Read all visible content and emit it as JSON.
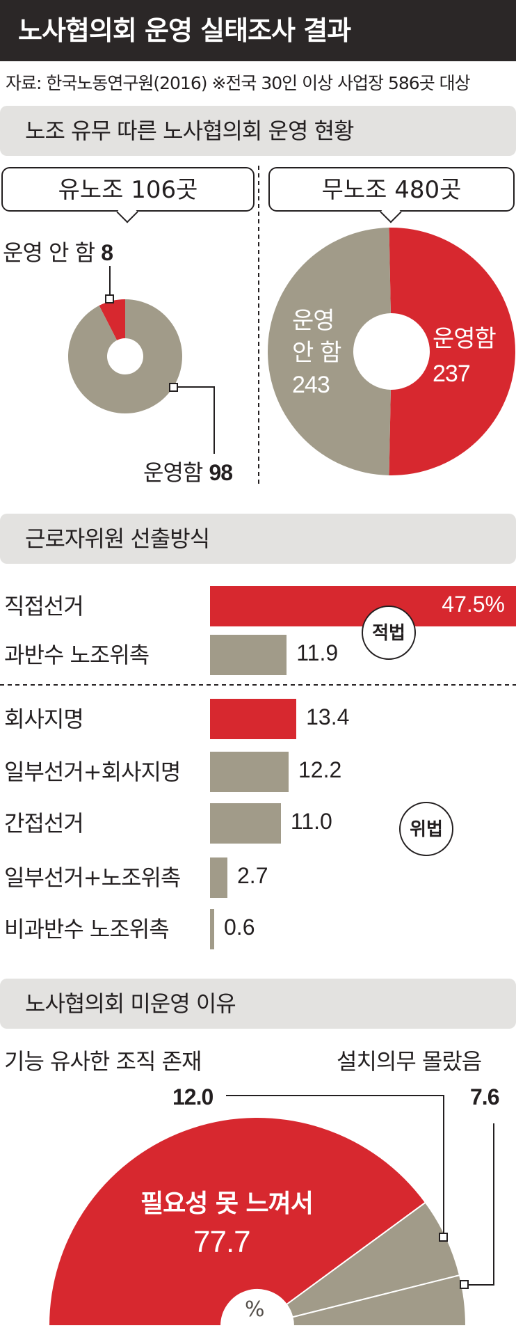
{
  "title": "노사협의회 운영 실태조사 결과",
  "source": "자료: 한국노동연구원(2016) ※전국 30인 이상 사업장 586곳 대상",
  "section1": {
    "header": "노조 유무 따른 노사협의회 운영 현황",
    "union": {
      "title": "유노조 106곳",
      "not_operating_label": "운영 안 함",
      "not_operating_value": "8",
      "operating_label": "운영함",
      "operating_value": "98"
    },
    "nonunion": {
      "title": "무노조 480곳",
      "not_operating_line1": "운영",
      "not_operating_line2": "안 함",
      "not_operating_value": "243",
      "operating_label": "운영함",
      "operating_value": "237"
    }
  },
  "section2": {
    "header": "근로자위원 선출방식",
    "legal_badge": "적법",
    "illegal_badge": "위법"
  },
  "section3": {
    "header": "노사협의회 미운영 이유",
    "item1_label": "기능 유사한 조직 존재",
    "item1_value": "12.0",
    "item2_label": "설치의무 몰랐음",
    "item2_value": "7.6",
    "item3_label": "필요성 못 느껴서",
    "item3_value": "77.7",
    "unit": "%"
  },
  "colors": {
    "red": "#d7282f",
    "gray": "#a19b89",
    "dark": "#2b2727",
    "panel": "#e3e2e0"
  },
  "chart_data": [
    {
      "type": "pie",
      "title": "유노조 106곳",
      "categories": [
        "운영 안 함",
        "운영함"
      ],
      "values": [
        8,
        98
      ]
    },
    {
      "type": "pie",
      "title": "무노조 480곳",
      "categories": [
        "운영 안 함",
        "운영함"
      ],
      "values": [
        243,
        237
      ]
    },
    {
      "type": "bar",
      "title": "근로자위원 선출방식",
      "unit": "%",
      "categories": [
        "직접선거",
        "과반수 노조위촉",
        "회사지명",
        "일부선거+회사지명",
        "간접선거",
        "일부선거+노조위촉",
        "비과반수 노조위촉"
      ],
      "values": [
        47.5,
        11.9,
        13.4,
        12.2,
        11.0,
        2.7,
        0.6
      ],
      "value_labels": [
        "47.5%",
        "11.9",
        "13.4",
        "12.2",
        "11.0",
        "2.7",
        "0.6"
      ],
      "groups": [
        "적법",
        "적법",
        "위법",
        "위법",
        "위법",
        "위법",
        "위법"
      ]
    },
    {
      "type": "pie",
      "title": "노사협의회 미운영 이유",
      "unit": "%",
      "categories": [
        "필요성 못 느껴서",
        "기능 유사한 조직 존재",
        "설치의무 몰랐음"
      ],
      "values": [
        77.7,
        12.0,
        7.6
      ]
    }
  ]
}
